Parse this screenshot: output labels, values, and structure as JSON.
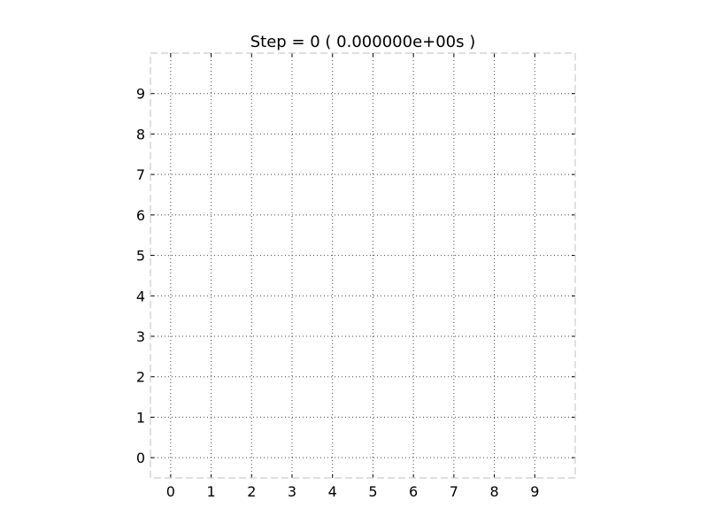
{
  "chart_data": {
    "type": "scatter",
    "title": "Step = 0  ( 0.000000e+00s )",
    "xlabel": "",
    "ylabel": "",
    "xlim": [
      -0.5,
      10.0
    ],
    "ylim": [
      -0.5,
      10.0
    ],
    "x_ticks": [
      0,
      1,
      2,
      3,
      4,
      5,
      6,
      7,
      8,
      9
    ],
    "y_ticks": [
      0,
      1,
      2,
      3,
      4,
      5,
      6,
      7,
      8,
      9
    ],
    "x_tick_labels": [
      "0",
      "1",
      "2",
      "3",
      "4",
      "5",
      "6",
      "7",
      "8",
      "9"
    ],
    "y_tick_labels": [
      "0",
      "1",
      "2",
      "3",
      "4",
      "5",
      "6",
      "7",
      "8",
      "9"
    ],
    "grid": true,
    "grid_style": "dotted",
    "frame_style": "dashed",
    "series": []
  },
  "colors": {
    "background": "#ffffff",
    "frame": "#cccccc",
    "grid": "#444444",
    "text": "#000000"
  }
}
